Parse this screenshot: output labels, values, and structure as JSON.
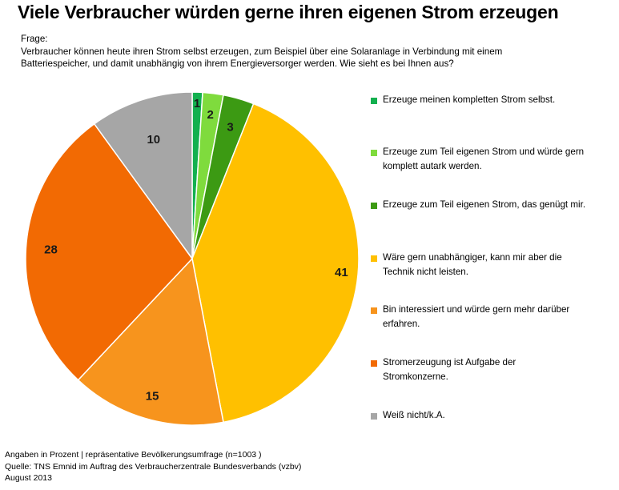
{
  "title": "Viele Verbraucher würden gerne ihren eigenen Strom erzeugen",
  "question": {
    "label": "Frage:",
    "line1": "Verbraucher können heute ihren Strom selbst erzeugen, zum Beispiel über eine Solaranlage in Verbindung mit einem",
    "line2": "Batteriespeicher, und damit unabhängig von ihrem Energieversorger werden. Wie sieht es bei Ihnen aus?"
  },
  "chart_data": {
    "type": "pie",
    "title": "Viele Verbraucher würden gerne ihren eigenen Strom erzeugen",
    "unit": "Prozent",
    "start": "12 o'clock, clockwise",
    "slices": [
      {
        "label": "Erzeuge meinen kompletten Strom selbst.",
        "value": 1,
        "color": "#13b04f"
      },
      {
        "label": "Erzeuge zum Teil eigenen Strom und würde gern komplett autark werden.",
        "value": 2,
        "color": "#7fdb3d"
      },
      {
        "label": "Erzeuge zum Teil eigenen Strom, das genügt mir.",
        "value": 3,
        "color": "#3c9a13"
      },
      {
        "label": "Wäre gern unabhängiger, kann mir aber die Technik nicht leisten.",
        "value": 41,
        "color": "#ffc000"
      },
      {
        "label": "Bin interessiert und würde gern mehr darüber erfahren.",
        "value": 15,
        "color": "#f7941d"
      },
      {
        "label": "Stromerzeugung ist Aufgabe der Stromkonzerne.",
        "value": 28,
        "color": "#f26a03"
      },
      {
        "label": "Weiß nicht/k.A.",
        "value": 10,
        "color": "#a6a6a6"
      }
    ]
  },
  "legend": [
    {
      "line1": "Erzeuge meinen kompletten Strom selbst.",
      "line2": ""
    },
    {
      "line1": "Erzeuge zum Teil eigenen Strom und würde gern",
      "line2": "komplett autark werden."
    },
    {
      "line1": "Erzeuge zum Teil eigenen Strom, das genügt mir.",
      "line2": ""
    },
    {
      "line1": "Wäre gern unabhängiger, kann mir aber die",
      "line2": "Technik nicht leisten."
    },
    {
      "line1": "Bin interessiert und würde gern mehr darüber",
      "line2": "erfahren."
    },
    {
      "line1": "Stromerzeugung ist Aufgabe der",
      "line2": "Stromkonzerne."
    },
    {
      "line1": "Weiß nicht/k.A.",
      "line2": ""
    }
  ],
  "footer": {
    "line1": "Angaben in Prozent | repräsentative Bevölkerungsumfrage (n=1003 )",
    "line2": "Quelle: TNS Emnid im Auftrag des Verbraucherzentrale Bundesverbands (vzbv)",
    "line3": "August 2013"
  }
}
